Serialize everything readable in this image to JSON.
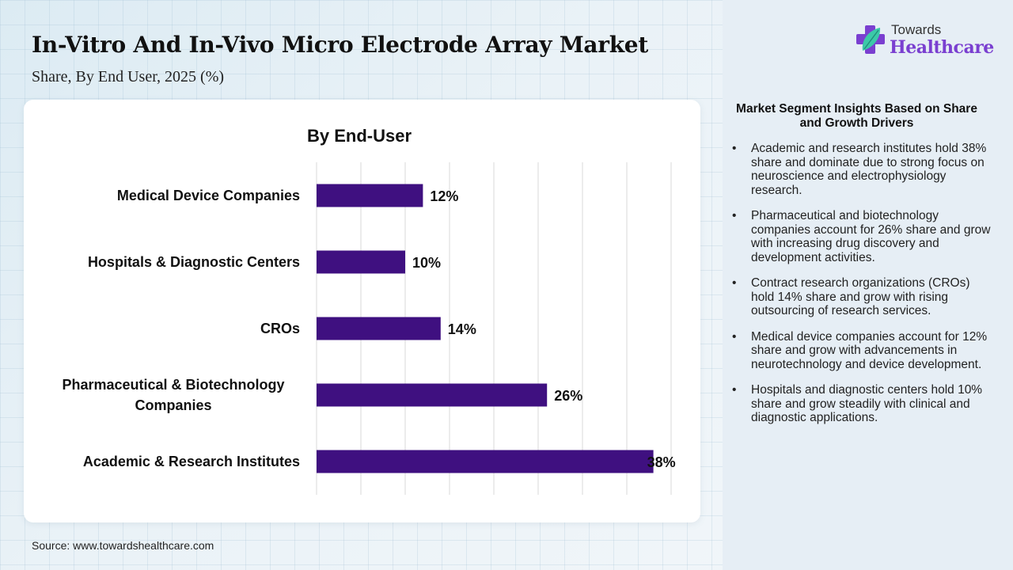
{
  "header": {
    "title": "In-Vitro And In-Vivo Micro Electrode Array Market",
    "subtitle": "Share, By End User, 2025 (%)"
  },
  "logo": {
    "top_text": "Towards",
    "bottom_text": "Healthcare",
    "icon": "cross-leaf-icon",
    "brand_color": "#7a3fd0"
  },
  "chart_data": {
    "type": "bar",
    "orientation": "horizontal",
    "title": "By End-User",
    "categories": [
      "Medical Device Companies",
      "Hospitals & Diagnostic Centers",
      "CROs",
      "Pharmaceutical & Biotechnology Companies",
      "Academic & Research Institutes"
    ],
    "category_lines": [
      [
        "Medical Device Companies"
      ],
      [
        "Hospitals & Diagnostic Centers"
      ],
      [
        "CROs"
      ],
      [
        "Pharmaceutical & Biotechnology",
        "Companies"
      ],
      [
        "Academic & Research Institutes"
      ]
    ],
    "values": [
      12,
      10,
      14,
      26,
      38
    ],
    "value_labels": [
      "12%",
      "10%",
      "14%",
      "26%",
      "38%"
    ],
    "xlim": [
      0,
      40
    ],
    "grid_step": 5,
    "grid": true,
    "bar_color": "#3f1080",
    "xlabel": "",
    "ylabel": ""
  },
  "insights": {
    "title": "Market Segment Insights Based on Share and Growth Drivers",
    "bullet": "•",
    "items": [
      "Academic and research institutes hold 38% share and dominate due to strong focus on neuroscience and electrophysiology research.",
      "Pharmaceutical and biotechnology companies account for 26% share and grow with increasing drug discovery and development activities.",
      "Contract research organizations (CROs) hold 14% share and grow with rising outsourcing of research services.",
      "Medical device companies account for 12% share and grow with advancements in neurotechnology and device development.",
      "Hospitals and diagnostic centers hold 10% share and grow steadily with clinical and diagnostic applications."
    ]
  },
  "footer": {
    "source": "Source: www.towardshealthcare.com"
  }
}
